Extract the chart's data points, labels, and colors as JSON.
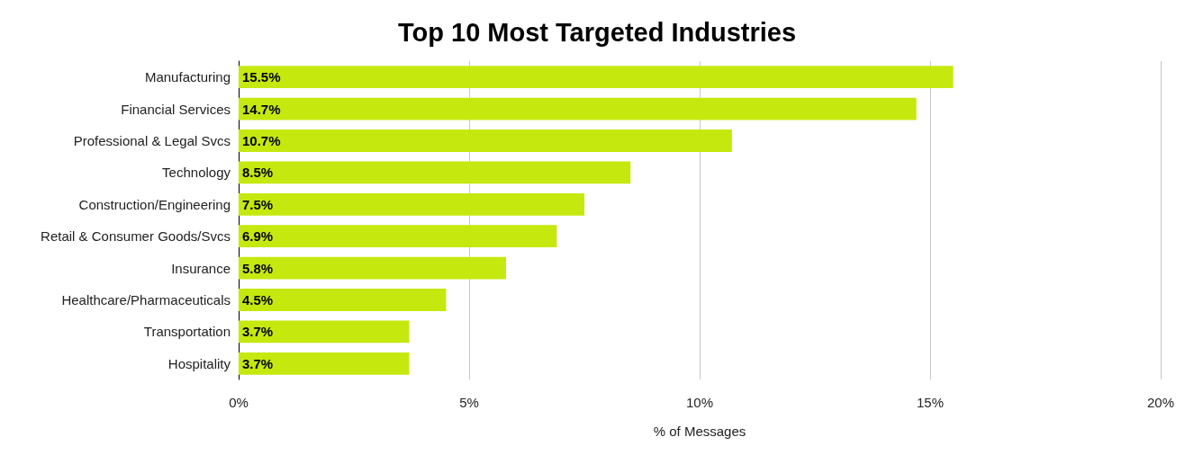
{
  "chart_data": {
    "type": "bar",
    "orientation": "horizontal",
    "title": "Top 10 Most Targeted Industries",
    "xlabel": "% of Messages",
    "categories": [
      "Manufacturing",
      "Financial Services",
      "Professional & Legal Svcs",
      "Technology",
      "Construction/Engineering",
      "Retail & Consumer Goods/Svcs",
      "Insurance",
      "Healthcare/Pharmaceuticals",
      "Transportation",
      "Hospitality"
    ],
    "values": [
      15.5,
      14.7,
      10.7,
      8.5,
      7.5,
      6.9,
      5.8,
      4.5,
      3.7,
      3.7
    ],
    "value_labels": [
      "15.5%",
      "14.7%",
      "10.7%",
      "8.5%",
      "7.5%",
      "6.9%",
      "5.8%",
      "4.5%",
      "3.7%",
      "3.7%"
    ],
    "color": "#c5e80e",
    "xlim": [
      0,
      20
    ],
    "xticks": [
      {
        "value": 0,
        "label": "0%"
      },
      {
        "value": 5,
        "label": "5%"
      },
      {
        "value": 10,
        "label": "10%"
      },
      {
        "value": 15,
        "label": "15%"
      },
      {
        "value": 20,
        "label": "20%"
      }
    ],
    "grid": "x"
  }
}
